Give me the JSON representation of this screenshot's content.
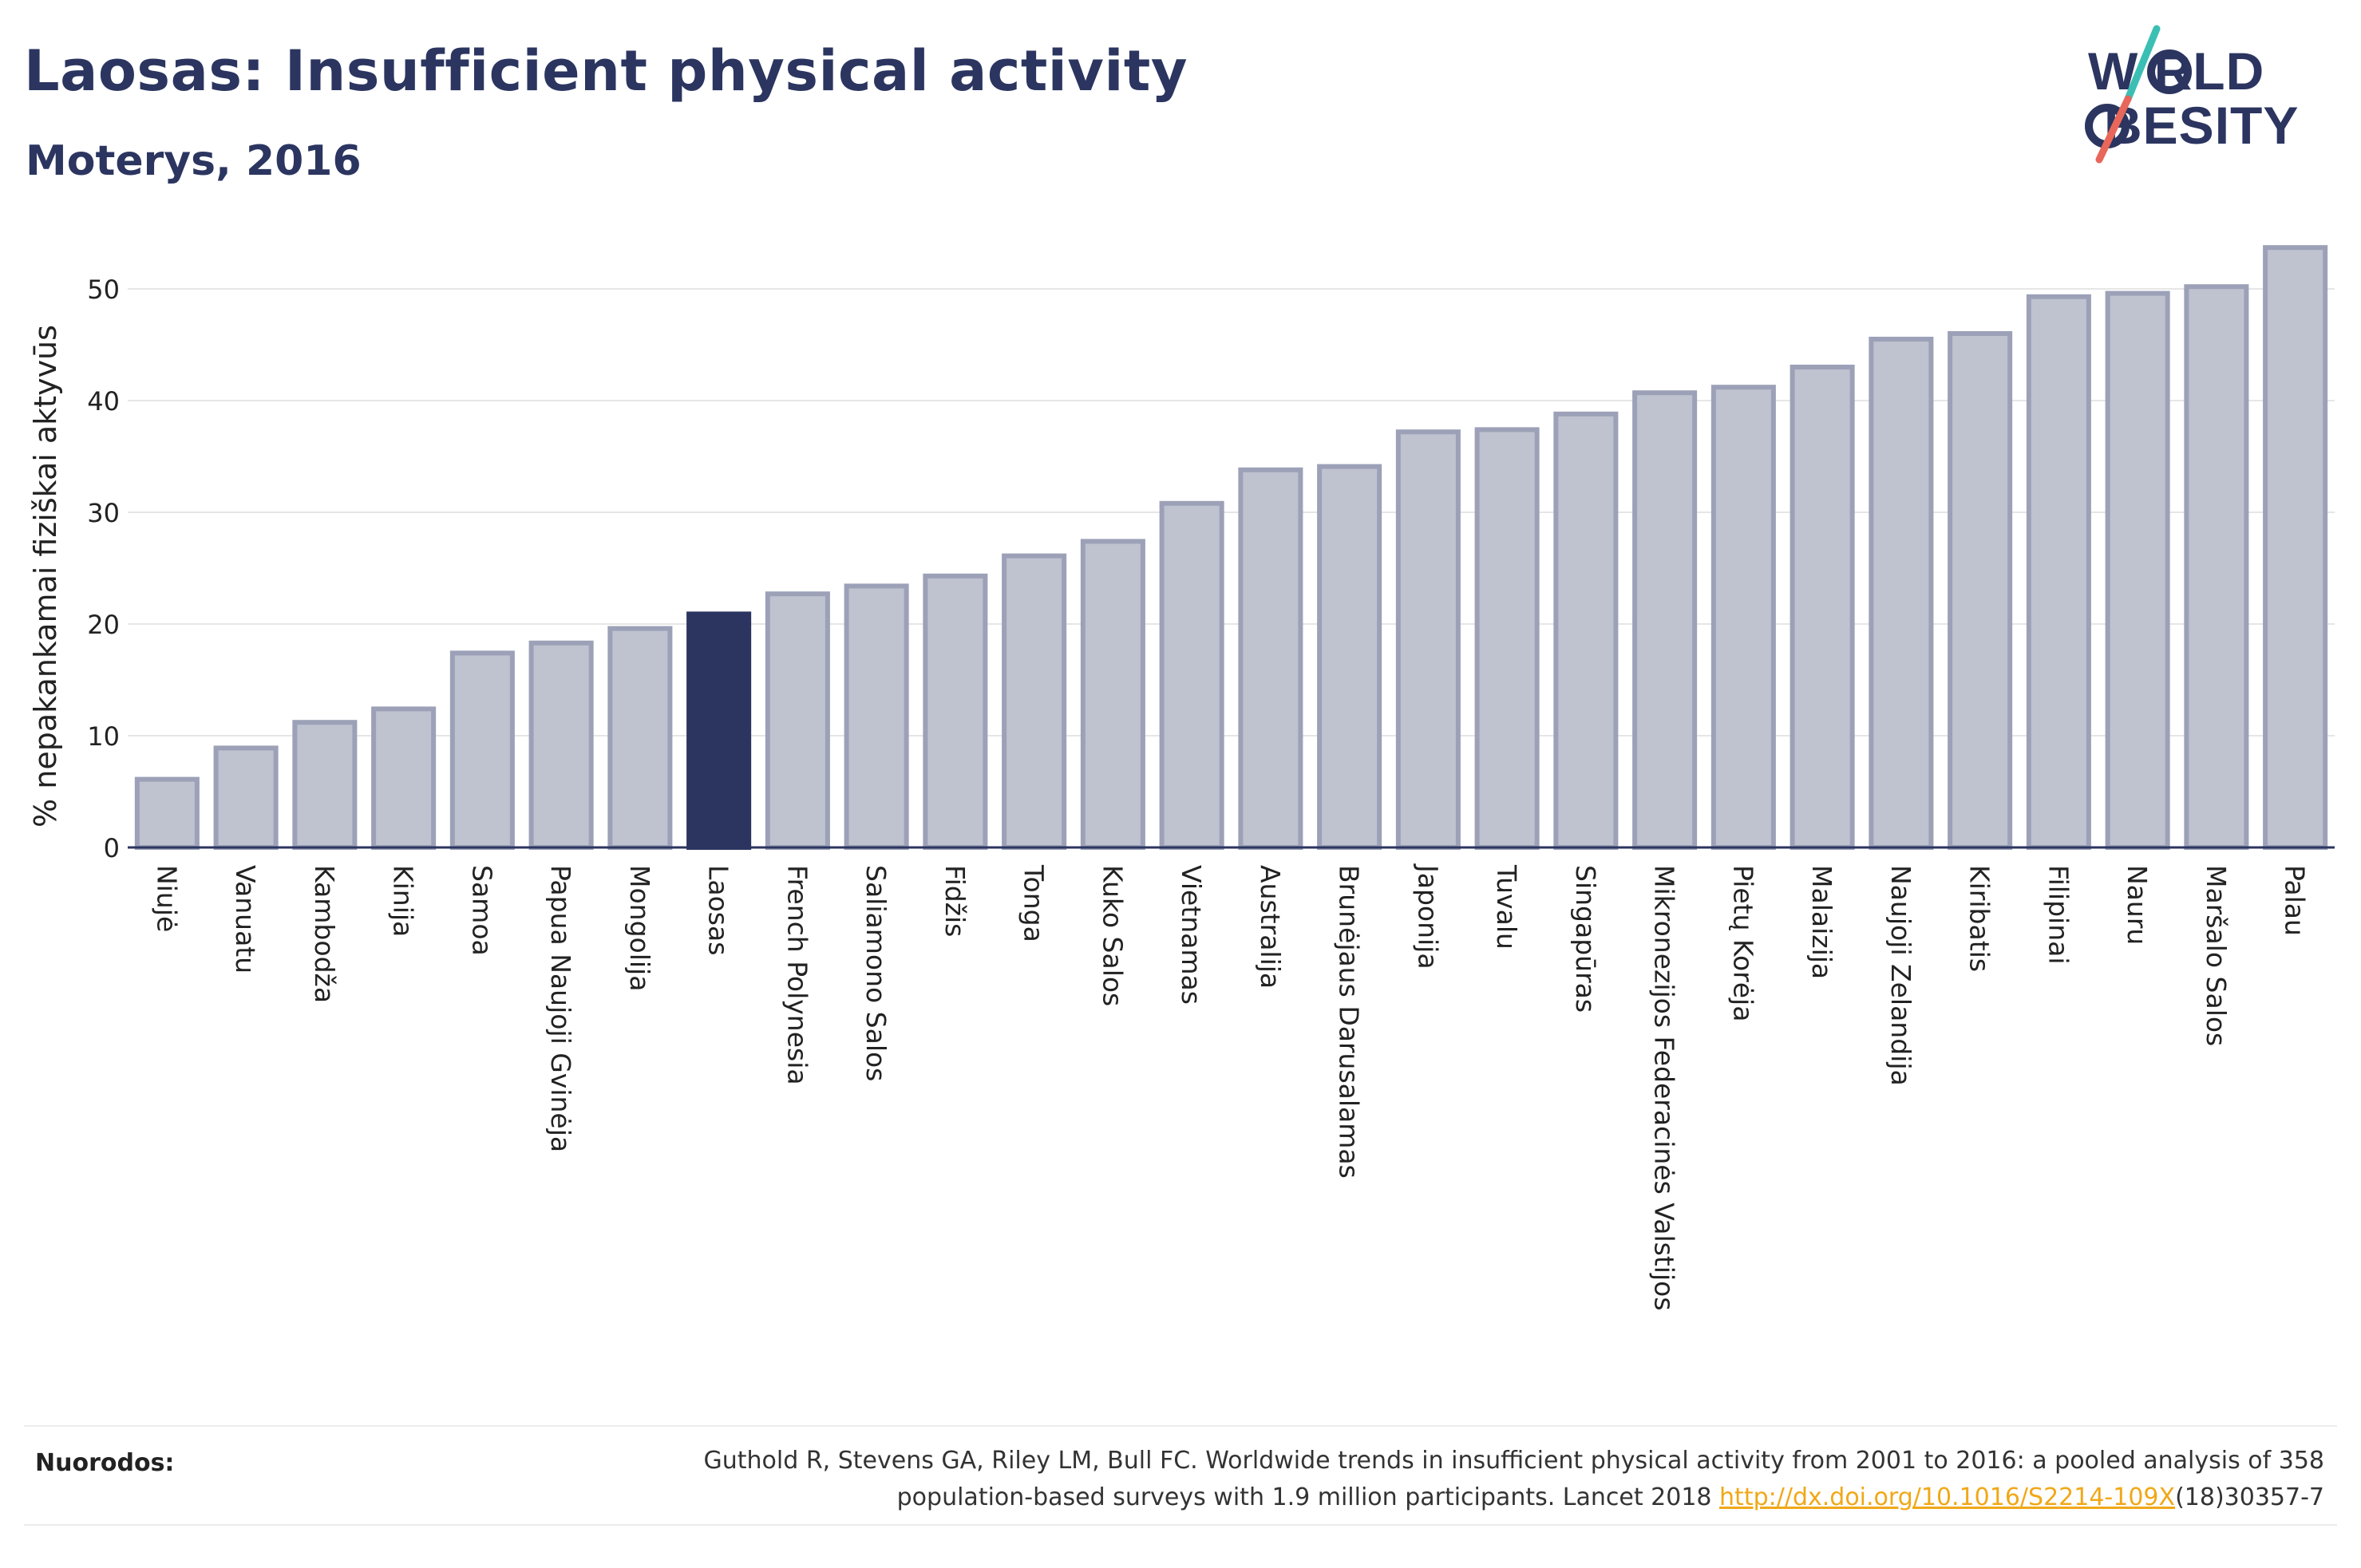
{
  "header": {
    "title": "Laosas: Insufficient physical activity",
    "subtitle": "Moterys, 2016"
  },
  "logo": {
    "line1": "W RLD",
    "line2": "BESITY",
    "text": "WORLD OBESITY",
    "colors": {
      "text": "#2b3560",
      "slash_top": "#3bbfb4",
      "slash_bottom": "#e8665a"
    }
  },
  "chart_data": {
    "type": "bar",
    "ylabel": "% nepakankamai fiziškai aktyvūs",
    "xlabel": "",
    "ylim": [
      0,
      55
    ],
    "yticks": [
      0,
      10,
      20,
      30,
      40,
      50
    ],
    "grid": true,
    "highlight": "Laosas",
    "colors": {
      "bar": "#bfc2cf",
      "bar_edge": "#9ca1b8",
      "highlight": "#2b3560"
    },
    "categories": [
      "Niujė",
      "Vanuatu",
      "Kambodža",
      "Kinija",
      "Samoa",
      "Papua Naujoji Gvinėja",
      "Mongolija",
      "Laosas",
      "French Polynesia",
      "Saliamono Salos",
      "Fidžis",
      "Tonga",
      "Kuko Salos",
      "Vietnamas",
      "Australija",
      "Brunėjaus Darusalamas",
      "Japonija",
      "Tuvalu",
      "Singapūras",
      "Mikronezijos Federacinės Valstijos",
      "Pietų Korėja",
      "Malaizija",
      "Naujoji Zelandija",
      "Kiribatis",
      "Filipinai",
      "Nauru",
      "Maršalo Salos",
      "Palau"
    ],
    "values": [
      6.1,
      8.9,
      11.2,
      12.4,
      17.4,
      18.3,
      19.6,
      20.9,
      22.7,
      23.4,
      24.3,
      26.1,
      27.4,
      30.8,
      33.8,
      34.1,
      37.2,
      37.4,
      38.8,
      40.7,
      41.2,
      43.0,
      45.5,
      46.0,
      49.3,
      49.6,
      50.2,
      53.7
    ]
  },
  "footer": {
    "refs_label": "Nuorodos:",
    "ref_line1": "Guthold R, Stevens GA, Riley LM, Bull FC. Worldwide trends in insufficient physical activity from 2001 to 2016: a pooled analysis of 358",
    "ref_line2_pre": "population-based surveys with 1.9 million participants. Lancet 2018 ",
    "ref_link": "http://dx.doi.org/10.1016/S2214-109X",
    "ref_line2_post": "(18)30357-7"
  }
}
